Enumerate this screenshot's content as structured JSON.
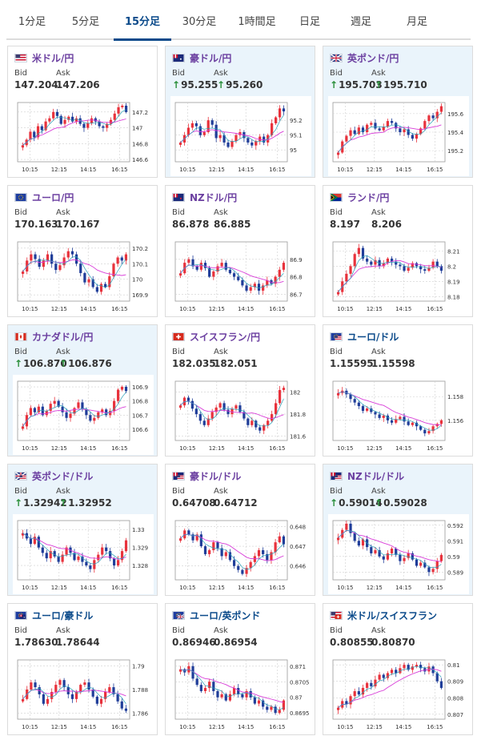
{
  "tabs": [
    {
      "label": "1分足",
      "active": false
    },
    {
      "label": "5分足",
      "active": false
    },
    {
      "label": "15分足",
      "active": true
    },
    {
      "label": "30分足",
      "active": false
    },
    {
      "label": "1時間足",
      "active": false
    },
    {
      "label": "日足",
      "active": false
    },
    {
      "label": "週足",
      "active": false
    },
    {
      "label": "月足",
      "active": false
    }
  ],
  "colors": {
    "accent": "#0b4a8a",
    "pair_text": "#6b3fa0",
    "up_arrow": "#2a8f3a",
    "candle_up": "#e8323c",
    "candle_down": "#1f3d99",
    "ma_line": "#d83cd8",
    "highlight_bg": "#eaf4fb"
  },
  "labels": {
    "bid": "Bid",
    "ask": "Ask"
  },
  "cards": [
    {
      "pair": "米ドル/円",
      "flag": "us-flag",
      "bid": "147.204",
      "ask": "147.206",
      "up": false,
      "highlight": false
    },
    {
      "pair": "豪ドル/円",
      "flag": "au-flag",
      "bid": "95.255",
      "ask": "95.260",
      "up": true,
      "highlight": true
    },
    {
      "pair": "英ポンド/円",
      "flag": "uk-flag",
      "bid": "195.703",
      "ask": "195.710",
      "up": true,
      "highlight": true
    },
    {
      "pair": "ユーロ/円",
      "flag": "eu-flag",
      "bid": "170.163",
      "ask": "170.167",
      "up": false,
      "highlight": false
    },
    {
      "pair": "NZドル/円",
      "flag": "nz-flag",
      "bid": "86.878",
      "ask": "86.885",
      "up": false,
      "highlight": false
    },
    {
      "pair": "ランド/円",
      "flag": "za-flag",
      "bid": "8.197",
      "ask": "8.206",
      "up": false,
      "highlight": false
    },
    {
      "pair": "カナダドル/円",
      "flag": "ca-flag",
      "bid": "106.870",
      "ask": "106.876",
      "up": true,
      "highlight": true
    },
    {
      "pair": "スイスフラン/円",
      "flag": "ch-flag",
      "bid": "182.035",
      "ask": "182.051",
      "up": false,
      "highlight": false
    },
    {
      "pair": "ユーロ/ドル",
      "flag": "eu-us-flag",
      "bid": "1.15595",
      "ask": "1.15598",
      "up": false,
      "highlight": false
    },
    {
      "pair": "英ポンド/ドル",
      "flag": "uk-us-flag",
      "bid": "1.32942",
      "ask": "1.32952",
      "up": true,
      "highlight": true
    },
    {
      "pair": "豪ドル/ドル",
      "flag": "au-us-flag",
      "bid": "0.64708",
      "ask": "0.64712",
      "up": false,
      "highlight": false
    },
    {
      "pair": "NZドル/ドル",
      "flag": "nz-us-flag",
      "bid": "0.59014",
      "ask": "0.59028",
      "up": true,
      "highlight": true
    },
    {
      "pair": "ユーロ/豪ドル",
      "flag": "eu-au-flag",
      "bid": "1.78630",
      "ask": "1.78644",
      "up": false,
      "highlight": false
    },
    {
      "pair": "ユーロ/英ポンド",
      "flag": "eu-uk-flag",
      "bid": "0.86946",
      "ask": "0.86954",
      "up": false,
      "highlight": false
    },
    {
      "pair": "米ドル/スイスフラン",
      "flag": "us-ch-flag",
      "bid": "0.80855",
      "ask": "0.80870",
      "up": false,
      "highlight": false
    }
  ],
  "chart_data": [
    {
      "type": "candlestick",
      "pair": "米ドル/円",
      "xticks": [
        "10:15",
        "12:15",
        "14:15",
        "16:15"
      ],
      "yticks": [
        "147.2",
        "147",
        "146.8",
        "146.6"
      ],
      "ylim": [
        146.57,
        147.32
      ],
      "close": [
        146.78,
        146.85,
        146.95,
        146.88,
        147.02,
        146.97,
        147.08,
        147.12,
        147.2,
        147.15,
        147.05,
        147.1,
        147.14,
        147.08,
        147.12,
        147.05,
        147.0,
        147.06,
        147.12,
        147.08,
        147.02,
        147.0,
        147.05,
        147.1,
        147.18,
        147.26,
        147.28,
        147.2
      ]
    },
    {
      "type": "candlestick",
      "pair": "豪ドル/円",
      "xticks": [
        "10:15",
        "12:15",
        "14:15",
        "16:15"
      ],
      "yticks": [
        "95.2",
        "95.1",
        "95"
      ],
      "ylim": [
        94.92,
        95.32
      ],
      "close": [
        95.05,
        95.1,
        95.15,
        95.18,
        95.16,
        95.1,
        95.12,
        95.2,
        95.17,
        95.08,
        95.1,
        95.05,
        95.02,
        95.06,
        95.1,
        95.12,
        95.08,
        95.05,
        95.03,
        95.06,
        95.09,
        95.05,
        95.1,
        95.18,
        95.22,
        95.28,
        95.26
      ]
    },
    {
      "type": "candlestick",
      "pair": "英ポンド/円",
      "xticks": [
        "10:15",
        "12:15",
        "14:15",
        "16:15"
      ],
      "yticks": [
        "195.6",
        "195.4",
        "195.2"
      ],
      "ylim": [
        195.08,
        195.72
      ],
      "close": [
        195.18,
        195.3,
        195.36,
        195.42,
        195.38,
        195.45,
        195.4,
        195.48,
        195.5,
        195.44,
        195.42,
        195.46,
        195.52,
        195.5,
        195.44,
        195.4,
        195.43,
        195.37,
        195.33,
        195.38,
        195.44,
        195.52,
        195.58,
        195.55,
        195.62,
        195.68
      ]
    },
    {
      "type": "candlestick",
      "pair": "ユーロ/円",
      "xticks": [
        "10:15",
        "12:15",
        "14:15",
        "16:15"
      ],
      "yticks": [
        "170.2",
        "170.1",
        "170",
        "169.9"
      ],
      "ylim": [
        169.86,
        170.24
      ],
      "close": [
        170.05,
        170.12,
        170.16,
        170.13,
        170.08,
        170.12,
        170.16,
        170.1,
        170.06,
        170.09,
        170.14,
        170.18,
        170.16,
        170.1,
        170.04,
        169.98,
        170.0,
        169.95,
        169.92,
        169.97,
        169.95,
        170.02,
        170.1,
        170.14,
        170.12,
        170.16
      ]
    },
    {
      "type": "candlestick",
      "pair": "NZドル/円",
      "xticks": [
        "10:15",
        "12:15",
        "14:15",
        "16:15"
      ],
      "yticks": [
        "86.9",
        "86.8",
        "86.7"
      ],
      "ylim": [
        86.66,
        87.0
      ],
      "close": [
        86.82,
        86.88,
        86.9,
        86.86,
        86.84,
        86.88,
        86.85,
        86.8,
        86.83,
        86.86,
        86.88,
        86.84,
        86.82,
        86.8,
        86.78,
        86.75,
        86.72,
        86.74,
        86.76,
        86.72,
        86.75,
        86.78,
        86.76,
        86.8,
        86.84,
        86.88
      ]
    },
    {
      "type": "candlestick",
      "pair": "ランド/円",
      "xticks": [
        "10:15",
        "12:15",
        "14:15",
        "16:15"
      ],
      "yticks": [
        "8.21",
        "8.2",
        "8.19",
        "8.18"
      ],
      "ylim": [
        8.177,
        8.216
      ],
      "close": [
        8.183,
        8.19,
        8.195,
        8.2,
        8.208,
        8.212,
        8.205,
        8.203,
        8.201,
        8.204,
        8.2,
        8.202,
        8.205,
        8.203,
        8.201,
        8.2,
        8.197,
        8.199,
        8.202,
        8.2,
        8.198,
        8.197,
        8.199,
        8.203,
        8.2,
        8.197
      ]
    },
    {
      "type": "candlestick",
      "pair": "カナダドル/円",
      "xticks": [
        "10:15",
        "12:15",
        "14:15",
        "16:15"
      ],
      "yticks": [
        "106.9",
        "106.8",
        "106.7",
        "106.6"
      ],
      "ylim": [
        106.52,
        106.94
      ],
      "close": [
        106.62,
        106.7,
        106.75,
        106.72,
        106.76,
        106.7,
        106.73,
        106.78,
        106.8,
        106.76,
        106.72,
        106.68,
        106.71,
        106.75,
        106.79,
        106.74,
        106.7,
        106.66,
        106.68,
        106.72,
        106.74,
        106.7,
        106.73,
        106.8,
        106.88,
        106.9,
        106.87
      ]
    },
    {
      "type": "candlestick",
      "pair": "スイスフラン/円",
      "xticks": [
        "10:15",
        "12:15",
        "14:15",
        "16:15"
      ],
      "yticks": [
        "182",
        "181.8",
        "181.6"
      ],
      "ylim": [
        181.56,
        182.1
      ],
      "close": [
        181.88,
        181.95,
        181.92,
        181.85,
        181.8,
        181.74,
        181.7,
        181.76,
        181.82,
        181.86,
        181.9,
        181.84,
        181.8,
        181.85,
        181.88,
        181.82,
        181.76,
        181.7,
        181.74,
        181.68,
        181.65,
        181.7,
        181.74,
        181.8,
        181.9,
        182.02,
        182.04
      ]
    },
    {
      "type": "candlestick",
      "pair": "ユーロ/ドル",
      "xticks": [
        "10:15",
        "12:15",
        "14:15",
        "16:15"
      ],
      "yticks": [
        "1.158",
        "1.156"
      ],
      "ylim": [
        1.1543,
        1.1593
      ],
      "close": [
        1.1583,
        1.1585,
        1.1582,
        1.1578,
        1.1575,
        1.1572,
        1.1568,
        1.157,
        1.1567,
        1.1565,
        1.1562,
        1.1564,
        1.156,
        1.1558,
        1.1561,
        1.1563,
        1.1559,
        1.1556,
        1.1558,
        1.1555,
        1.1552,
        1.1549,
        1.1551,
        1.1555,
        1.1557,
        1.156
      ]
    },
    {
      "type": "candlestick",
      "pair": "英ポンド/ドル",
      "xticks": [
        "10:15",
        "12:15",
        "14:15",
        "16:15"
      ],
      "yticks": [
        "1.33",
        "1.329",
        "1.328"
      ],
      "ylim": [
        1.3272,
        1.3305
      ],
      "close": [
        1.3298,
        1.3295,
        1.3292,
        1.3296,
        1.329,
        1.3287,
        1.3284,
        1.3288,
        1.3285,
        1.3282,
        1.3286,
        1.329,
        1.3287,
        1.3283,
        1.3285,
        1.3282,
        1.328,
        1.3278,
        1.3283,
        1.3286,
        1.329,
        1.3288,
        1.3284,
        1.328,
        1.3283,
        1.3288,
        1.3294
      ]
    },
    {
      "type": "candlestick",
      "pair": "豪ドル/ドル",
      "xticks": [
        "10:15",
        "12:15",
        "14:15",
        "16:15"
      ],
      "yticks": [
        "0.648",
        "0.647",
        "0.646"
      ],
      "ylim": [
        0.6453,
        0.6483
      ],
      "close": [
        0.6474,
        0.6478,
        0.6476,
        0.6473,
        0.6476,
        0.647,
        0.6466,
        0.6468,
        0.6472,
        0.6469,
        0.6465,
        0.6467,
        0.6463,
        0.646,
        0.6458,
        0.6456,
        0.6459,
        0.6462,
        0.6465,
        0.6468,
        0.6466,
        0.6463,
        0.6467,
        0.6472,
        0.6475,
        0.6471
      ]
    },
    {
      "type": "candlestick",
      "pair": "NZドル/ドル",
      "xticks": [
        "10:15",
        "12:15",
        "14:15",
        "16:15"
      ],
      "yticks": [
        "0.592",
        "0.591",
        "0.59",
        "0.589"
      ],
      "ylim": [
        0.5885,
        0.5923
      ],
      "close": [
        0.5912,
        0.5917,
        0.5921,
        0.5915,
        0.591,
        0.5907,
        0.5911,
        0.5906,
        0.5902,
        0.5904,
        0.59,
        0.5898,
        0.5902,
        0.5905,
        0.5901,
        0.5897,
        0.5899,
        0.5902,
        0.5898,
        0.5894,
        0.5896,
        0.5893,
        0.589,
        0.5892,
        0.5897,
        0.5901
      ]
    },
    {
      "type": "candlestick",
      "pair": "ユーロ/豪ドル",
      "xticks": [
        "10:15",
        "12:15",
        "14:15",
        "16:15"
      ],
      "yticks": [
        "1.79",
        "1.788",
        "1.786"
      ],
      "ylim": [
        1.7855,
        1.7905
      ],
      "close": [
        1.7872,
        1.788,
        1.7886,
        1.7882,
        1.7876,
        1.7868,
        1.7872,
        1.7878,
        1.7884,
        1.7888,
        1.7882,
        1.7876,
        1.7872,
        1.7878,
        1.7884,
        1.7886,
        1.788,
        1.7874,
        1.7868,
        1.7872,
        1.7878,
        1.7882,
        1.7876,
        1.787,
        1.7864,
        1.7862
      ]
    },
    {
      "type": "candlestick",
      "pair": "ユーロ/英ポンド",
      "xticks": [
        "10:15",
        "12:15",
        "14:15",
        "16:15"
      ],
      "yticks": [
        "0.871",
        "0.8705",
        "0.87",
        "0.8695"
      ],
      "ylim": [
        0.8693,
        0.8712
      ],
      "close": [
        0.8709,
        0.8708,
        0.871,
        0.8706,
        0.8704,
        0.8702,
        0.8703,
        0.8705,
        0.8702,
        0.87,
        0.8701,
        0.8699,
        0.8701,
        0.8703,
        0.8701,
        0.87,
        0.8702,
        0.87,
        0.8698,
        0.8699,
        0.8697,
        0.8696,
        0.8697,
        0.8695,
        0.8696,
        0.8699
      ]
    },
    {
      "type": "candlestick",
      "pair": "米ドル/スイスフラン",
      "xticks": [
        "10:15",
        "12:15",
        "14:15",
        "16:15"
      ],
      "yticks": [
        "0.81",
        "0.809",
        "0.808",
        "0.807"
      ],
      "ylim": [
        0.8067,
        0.8103
      ],
      "close": [
        0.8074,
        0.8078,
        0.8076,
        0.8081,
        0.8084,
        0.8082,
        0.8086,
        0.8089,
        0.8087,
        0.8091,
        0.8094,
        0.8092,
        0.8095,
        0.8097,
        0.8095,
        0.8098,
        0.81,
        0.8097,
        0.8099,
        0.81,
        0.8098,
        0.8096,
        0.8099,
        0.8095,
        0.809,
        0.8086
      ]
    }
  ]
}
